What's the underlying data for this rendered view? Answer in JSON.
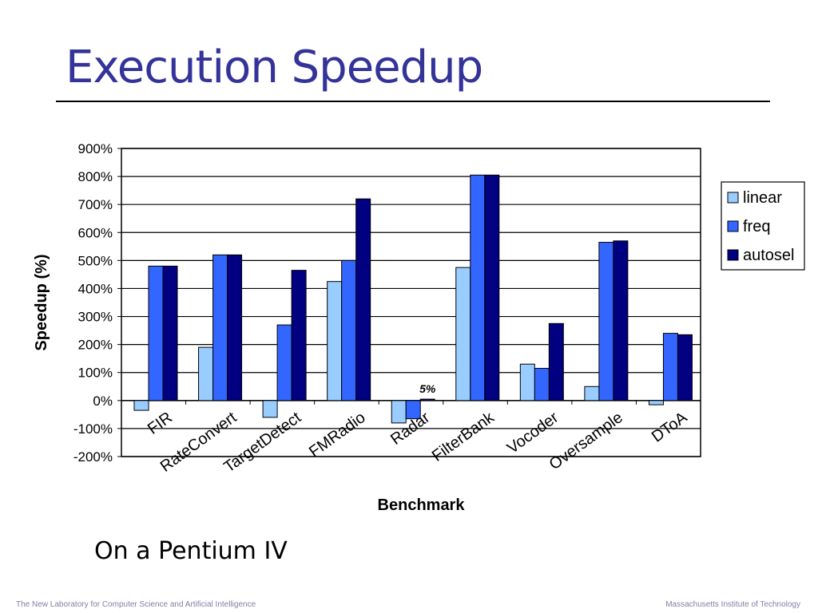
{
  "slide": {
    "title": "Execution Speedup",
    "subtitle": "On a Pentium IV",
    "footer_left": "The New Laboratory for Computer Science and Artificial Intelligence",
    "footer_right": "Massachusetts Institute of Technology"
  },
  "colors": {
    "title": "#333399",
    "linear": "#99ccff",
    "freq": "#3366ff",
    "autosel": "#000080"
  },
  "chart_data": {
    "type": "bar",
    "title": "",
    "xlabel": "Benchmark",
    "ylabel": "Speedup (%)",
    "ylim": [
      -200,
      900
    ],
    "yticks": [
      900,
      800,
      700,
      600,
      500,
      400,
      300,
      200,
      100,
      0,
      -100,
      -200
    ],
    "ytick_labels": [
      "900%",
      "800%",
      "700%",
      "600%",
      "500%",
      "400%",
      "300%",
      "200%",
      "100%",
      "0%",
      "-100%",
      "-200%"
    ],
    "grid": true,
    "legend": "right",
    "categories": [
      "FIR",
      "RateConvert",
      "TargetDetect",
      "FMRadio",
      "Radar",
      "FilterBank",
      "Vocoder",
      "Oversample",
      "DToA"
    ],
    "series": [
      {
        "name": "linear",
        "values": [
          -35,
          190,
          -60,
          425,
          -80,
          475,
          130,
          50,
          -15
        ]
      },
      {
        "name": "freq",
        "values": [
          480,
          520,
          270,
          500,
          -65,
          805,
          115,
          565,
          240
        ]
      },
      {
        "name": "autosel",
        "values": [
          480,
          520,
          465,
          720,
          5,
          805,
          275,
          570,
          235
        ]
      }
    ],
    "annotations": [
      {
        "text": "5%",
        "category": "Radar",
        "series": "autosel"
      }
    ]
  }
}
